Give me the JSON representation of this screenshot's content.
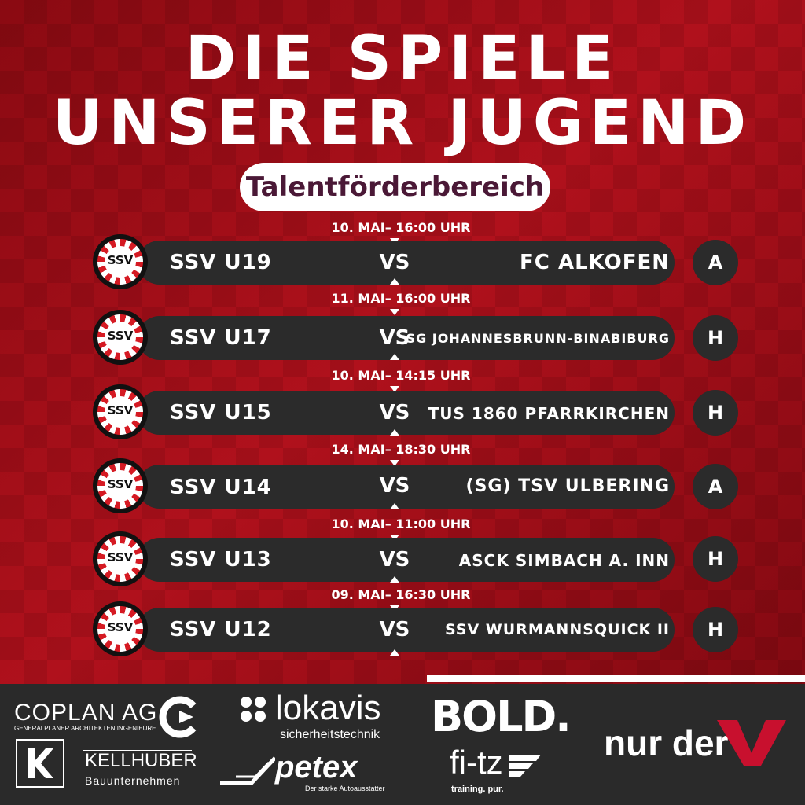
{
  "header": {
    "line1": "DIE SPIELE",
    "line2": "UNSERER JUGEND",
    "subtitle": "Talentförderbereich"
  },
  "club_logo": {
    "name": "SSV",
    "icon": "club-crest-icon"
  },
  "matches": [
    {
      "date": "10. MAI– 16:00 UHR",
      "home": "SSV U19",
      "vs": "VS",
      "away": "FC ALKOFEN",
      "venue": "A"
    },
    {
      "date": "11. MAI– 16:00 UHR",
      "home": "SSV U17",
      "vs": "VS",
      "away": "SG JOHANNESBRUNN-BINABIBURG",
      "venue": "H"
    },
    {
      "date": "10. MAI– 14:15 UHR",
      "home": "SSV U15",
      "vs": "VS",
      "away": "TUS 1860 PFARRKIRCHEN",
      "venue": "H"
    },
    {
      "date": "14. MAI– 18:30 UHR",
      "home": "SSV U14",
      "vs": "VS",
      "away": "(SG) TSV ULBERING",
      "venue": "A"
    },
    {
      "date": "10. MAI– 11:00 UHR",
      "home": "SSV U13",
      "vs": "VS",
      "away": "ASCK SIMBACH A. INN",
      "venue": "H"
    },
    {
      "date": "09. MAI– 16:30 UHR",
      "home": "SSV U12",
      "vs": "VS",
      "away": "SSV WURMANNSQUICK II",
      "venue": "H"
    }
  ],
  "sponsors": {
    "coplan": {
      "name": "COPLAN AG",
      "sub": "GENERALPLANER ARCHITEKTEN INGENIEURE"
    },
    "kellhuber": {
      "name": "KELLHUBER",
      "sub": "Bauunternehmen"
    },
    "lokavis": {
      "name": "lokavis",
      "sub": "sicherheitstechnik"
    },
    "petex": {
      "name": "petex",
      "sub": "Der starke Autoausstatter"
    },
    "bold": {
      "name": "BOLD."
    },
    "fitz": {
      "name": "fi-tz",
      "sub": "training. pur."
    },
    "nurder": {
      "name": "nur der"
    }
  },
  "colors": {
    "primary_red": "#b0111c",
    "bar": "#2b2b2b",
    "footer": "#2a2a2a",
    "accent_red": "#c8102e"
  }
}
